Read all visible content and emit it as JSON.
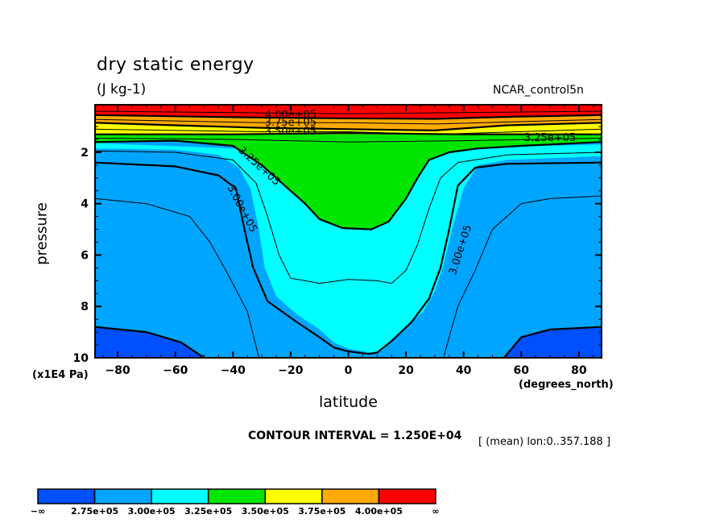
{
  "chart_data": {
    "type": "contour",
    "title": "dry static energy",
    "units": "(J kg-1)",
    "dataset_label": "NCAR_control5n",
    "xlabel": "latitude",
    "xunits": "(degrees_north)",
    "ylabel": "pressure",
    "yunits": "(x1E4 Pa)",
    "xlim": [
      -87.86,
      87.86
    ],
    "ylim": [
      10,
      0.15
    ],
    "x_ticks": [
      -80,
      -60,
      -40,
      -20,
      0,
      20,
      40,
      60,
      80
    ],
    "x_tick_labels": [
      "−80",
      "−60",
      "−40",
      "−20",
      "0",
      "20",
      "40",
      "60",
      "80"
    ],
    "y_ticks": [
      2,
      4,
      6,
      8,
      10
    ],
    "y_tick_labels": [
      "2",
      "4",
      "6",
      "8",
      "10"
    ],
    "contour_interval_text": "CONTOUR INTERVAL = 1.250E+04",
    "mean_text": "[ (mean) lon:0..357.188 ]",
    "levels": [
      275000,
      300000,
      325000,
      350000,
      375000,
      400000
    ],
    "colorbar": {
      "colors": [
        "#0050ff",
        "#00a5ff",
        "#00ffff",
        "#00e600",
        "#ffff00",
        "#ffaa00",
        "#ff0000"
      ],
      "labels": [
        "−∞",
        "2.75e+05",
        "3.00e+05",
        "3.25e+05",
        "3.50e+05",
        "3.75e+05",
        "4.00e+05",
        "∞"
      ]
    },
    "contour_labels": [
      {
        "text": "4.00e+05",
        "lat": -20,
        "p": 0.55,
        "angle": 0
      },
      {
        "text": "3.75e+05",
        "lat": -20,
        "p": 0.85,
        "angle": 0
      },
      {
        "text": "3.50e+05",
        "lat": -20,
        "p": 1.2,
        "angle": 0
      },
      {
        "text": "3.25e+05",
        "lat": 70,
        "p": 1.45,
        "angle": 0
      },
      {
        "text": "3.25e+05",
        "lat": -31,
        "p": 2.55,
        "angle": 42
      },
      {
        "text": "3.00e+05",
        "lat": -37,
        "p": 4.2,
        "angle": 62
      },
      {
        "text": "3.00e+05",
        "lat": 39,
        "p": 5.8,
        "angle": -72
      }
    ],
    "regions": [
      {
        "level_band": "<2.75e+05",
        "color": "#0050ff",
        "poly": [
          [
            -87.86,
            8.8
          ],
          [
            -70,
            9.0
          ],
          [
            -58,
            9.4
          ],
          [
            -50,
            10
          ],
          [
            -87.86,
            10
          ]
        ]
      },
      {
        "level_band": "<2.75e+05",
        "color": "#0050ff",
        "poly": [
          [
            87.86,
            8.8
          ],
          [
            70,
            8.9
          ],
          [
            60,
            9.2
          ],
          [
            54,
            10
          ],
          [
            87.86,
            10
          ]
        ]
      },
      {
        "level_band": "3.00-3.25e+05",
        "color": "#00ffff",
        "poly": [
          [
            -87.86,
            1.85
          ],
          [
            -60,
            1.9
          ],
          [
            -45,
            2.1
          ],
          [
            -38,
            2.6
          ],
          [
            -34,
            3.4
          ],
          [
            -31,
            5.0
          ],
          [
            -29,
            6.5
          ],
          [
            -25,
            7.6
          ],
          [
            -18,
            8.3
          ],
          [
            -10,
            8.9
          ],
          [
            -5,
            9.4
          ],
          [
            0,
            9.65
          ],
          [
            8,
            9.8
          ],
          [
            12,
            9.7
          ],
          [
            15,
            9.3
          ],
          [
            20,
            8.8
          ],
          [
            26,
            8.2
          ],
          [
            30,
            7.4
          ],
          [
            33,
            6.4
          ],
          [
            36,
            5.0
          ],
          [
            40,
            3.4
          ],
          [
            45,
            2.5
          ],
          [
            55,
            2.3
          ],
          [
            87.86,
            2.15
          ],
          [
            87.86,
            1.7
          ],
          [
            70,
            1.75
          ],
          [
            60,
            1.75
          ],
          [
            50,
            1.8
          ],
          [
            40,
            1.9
          ],
          [
            -40,
            1.85
          ],
          [
            -87.86,
            1.65
          ]
        ]
      },
      {
        "level_band": "3.25-3.50e+05",
        "color": "#00e600",
        "poly": [
          [
            -87.86,
            1.65
          ],
          [
            -60,
            1.55
          ],
          [
            -40,
            1.75
          ],
          [
            -30,
            2.5
          ],
          [
            -22,
            3.3
          ],
          [
            -15,
            4.0
          ],
          [
            -10,
            4.6
          ],
          [
            -2,
            4.95
          ],
          [
            8,
            5.0
          ],
          [
            14,
            4.7
          ],
          [
            20,
            3.8
          ],
          [
            24,
            3.0
          ],
          [
            28,
            2.3
          ],
          [
            35,
            2.0
          ],
          [
            45,
            1.85
          ],
          [
            60,
            1.75
          ],
          [
            87.86,
            1.6
          ],
          [
            87.86,
            1.3
          ],
          [
            -87.86,
            1.3
          ]
        ]
      },
      {
        "level_band": "3.50-3.75e+05",
        "color": "#ffff00",
        "poly": [
          [
            -87.86,
            1.3
          ],
          [
            87.86,
            1.3
          ],
          [
            87.86,
            0.85
          ],
          [
            55,
            0.95
          ],
          [
            30,
            1.15
          ],
          [
            0,
            1.1
          ],
          [
            -30,
            1.05
          ],
          [
            -60,
            0.95
          ],
          [
            -87.86,
            0.85
          ]
        ]
      },
      {
        "level_band": "3.75-4.00e+05",
        "color": "#ffaa00",
        "poly": [
          [
            -87.86,
            0.85
          ],
          [
            -60,
            0.95
          ],
          [
            -30,
            1.05
          ],
          [
            0,
            1.1
          ],
          [
            30,
            1.15
          ],
          [
            55,
            0.95
          ],
          [
            87.86,
            0.85
          ],
          [
            87.86,
            0.55
          ],
          [
            55,
            0.62
          ],
          [
            30,
            0.7
          ],
          [
            0,
            0.68
          ],
          [
            -30,
            0.65
          ],
          [
            -60,
            0.6
          ],
          [
            -87.86,
            0.55
          ]
        ]
      },
      {
        "level_band": ">4.00e+05",
        "color": "#ff0000",
        "poly": [
          [
            -87.86,
            0.15
          ],
          [
            87.86,
            0.15
          ],
          [
            87.86,
            0.55
          ],
          [
            55,
            0.62
          ],
          [
            30,
            0.7
          ],
          [
            0,
            0.68
          ],
          [
            -30,
            0.65
          ],
          [
            -60,
            0.6
          ],
          [
            -87.86,
            0.55
          ]
        ]
      }
    ],
    "thick_lines": [
      [
        [
          -87.86,
          8.8
        ],
        [
          -70,
          9.0
        ],
        [
          -58,
          9.4
        ],
        [
          -50,
          10
        ]
      ],
      [
        [
          87.86,
          8.8
        ],
        [
          70,
          8.9
        ],
        [
          60,
          9.2
        ],
        [
          54,
          10
        ]
      ],
      [
        [
          -87.86,
          2.4
        ],
        [
          -60,
          2.55
        ],
        [
          -45,
          2.9
        ],
        [
          -39,
          3.4
        ],
        [
          -36,
          5.0
        ],
        [
          -33,
          6.5
        ],
        [
          -28,
          7.8
        ],
        [
          -18,
          8.6
        ],
        [
          -10,
          9.2
        ],
        [
          -5,
          9.6
        ],
        [
          0,
          9.75
        ],
        [
          7,
          9.85
        ],
        [
          10,
          9.8
        ],
        [
          15,
          9.35
        ],
        [
          22,
          8.6
        ],
        [
          28,
          7.7
        ],
        [
          32,
          6.5
        ],
        [
          35,
          5.0
        ],
        [
          38,
          3.3
        ],
        [
          44,
          2.6
        ],
        [
          55,
          2.45
        ],
        [
          87.86,
          2.4
        ]
      ],
      [
        [
          -87.86,
          1.6
        ],
        [
          -60,
          1.55
        ],
        [
          -40,
          1.75
        ],
        [
          -30,
          2.5
        ],
        [
          -22,
          3.3
        ],
        [
          -15,
          4.0
        ],
        [
          -10,
          4.6
        ],
        [
          -2,
          4.95
        ],
        [
          8,
          5.0
        ],
        [
          14,
          4.7
        ],
        [
          20,
          3.8
        ],
        [
          24,
          3.0
        ],
        [
          28,
          2.3
        ],
        [
          35,
          2.0
        ],
        [
          45,
          1.85
        ],
        [
          60,
          1.75
        ],
        [
          87.86,
          1.6
        ]
      ],
      [
        [
          -87.86,
          1.3
        ],
        [
          -40,
          1.3
        ],
        [
          0,
          1.25
        ],
        [
          40,
          1.3
        ],
        [
          87.86,
          1.3
        ]
      ],
      [
        [
          -87.86,
          0.85
        ],
        [
          -60,
          0.95
        ],
        [
          -30,
          1.05
        ],
        [
          0,
          1.1
        ],
        [
          30,
          1.15
        ],
        [
          55,
          0.95
        ],
        [
          87.86,
          0.85
        ]
      ],
      [
        [
          -87.86,
          0.55
        ],
        [
          -60,
          0.6
        ],
        [
          -30,
          0.65
        ],
        [
          0,
          0.68
        ],
        [
          30,
          0.7
        ],
        [
          55,
          0.62
        ],
        [
          87.86,
          0.55
        ]
      ]
    ],
    "thin_lines": [
      [
        [
          -87.86,
          3.8
        ],
        [
          -70,
          4.0
        ],
        [
          -55,
          4.5
        ],
        [
          -48,
          5.5
        ],
        [
          -42,
          6.7
        ],
        [
          -35,
          8.2
        ],
        [
          -31,
          10
        ]
      ],
      [
        [
          87.86,
          3.7
        ],
        [
          70,
          3.8
        ],
        [
          60,
          4.0
        ],
        [
          50,
          5.0
        ],
        [
          44,
          6.6
        ],
        [
          38,
          8.0
        ],
        [
          33,
          10
        ]
      ],
      [
        [
          -87.86,
          1.95
        ],
        [
          -60,
          2.0
        ],
        [
          -40,
          2.3
        ],
        [
          -32,
          3.2
        ],
        [
          -28,
          4.5
        ],
        [
          -24,
          6.0
        ],
        [
          -20,
          6.9
        ],
        [
          -10,
          7.1
        ],
        [
          0,
          6.95
        ],
        [
          10,
          7.0
        ],
        [
          15,
          7.1
        ],
        [
          20,
          6.6
        ],
        [
          24,
          5.6
        ],
        [
          28,
          4.2
        ],
        [
          32,
          3.0
        ],
        [
          38,
          2.4
        ],
        [
          55,
          2.1
        ],
        [
          87.86,
          2.0
        ]
      ],
      [
        [
          -87.86,
          1.45
        ],
        [
          -40,
          1.5
        ],
        [
          0,
          1.6
        ],
        [
          40,
          1.55
        ],
        [
          87.86,
          1.45
        ]
      ],
      [
        [
          -87.86,
          1.1
        ],
        [
          -30,
          1.2
        ],
        [
          0,
          1.2
        ],
        [
          30,
          1.3
        ],
        [
          87.86,
          1.1
        ]
      ],
      [
        [
          -87.86,
          0.72
        ],
        [
          -30,
          0.85
        ],
        [
          0,
          0.85
        ],
        [
          30,
          0.9
        ],
        [
          87.86,
          0.72
        ]
      ],
      [
        [
          -87.86,
          0.4
        ],
        [
          0,
          0.5
        ],
        [
          87.86,
          0.4
        ]
      ]
    ]
  }
}
